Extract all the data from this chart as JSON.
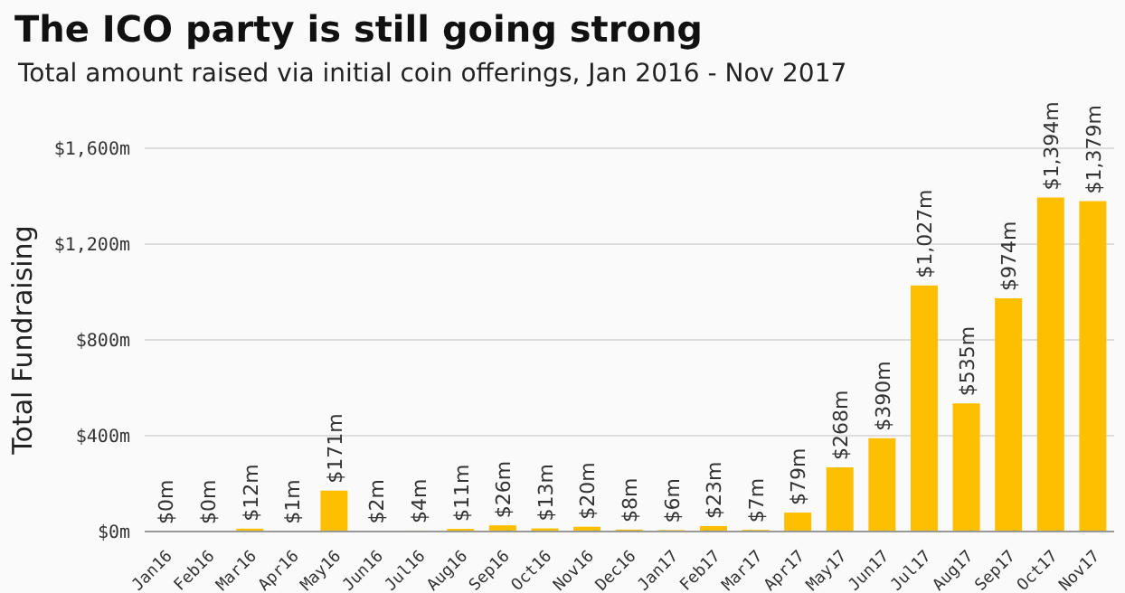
{
  "chart_data": {
    "type": "bar",
    "title": "The ICO party is still going strong",
    "subtitle": "Total amount raised via initial coin offerings, Jan 2016 - Nov 2017",
    "ylabel": "Total Fundraising",
    "categories": [
      "Jan16",
      "Feb16",
      "Mar16",
      "Apr16",
      "May16",
      "Jun16",
      "Jul16",
      "Aug16",
      "Sep16",
      "Oct16",
      "Nov16",
      "Dec16",
      "Jan17",
      "Feb17",
      "Mar17",
      "Apr17",
      "May17",
      "Jun17",
      "Jul17",
      "Aug17",
      "Sep17",
      "Oct17",
      "Nov17"
    ],
    "values": [
      0,
      0,
      12,
      1,
      171,
      2,
      4,
      11,
      26,
      13,
      20,
      8,
      6,
      23,
      7,
      79,
      268,
      390,
      1027,
      535,
      974,
      1394,
      1379
    ],
    "value_labels": [
      "$0m",
      "$0m",
      "$12m",
      "$1m",
      "$171m",
      "$2m",
      "$4m",
      "$11m",
      "$26m",
      "$13m",
      "$20m",
      "$8m",
      "$6m",
      "$23m",
      "$7m",
      "$79m",
      "$268m",
      "$390m",
      "$1,027m",
      "$535m",
      "$974m",
      "$1,394m",
      "$1,379m"
    ],
    "color": "#fdbf00",
    "ylim": [
      0,
      1600
    ],
    "yticks": [
      {
        "value": 0,
        "label": "$0m"
      },
      {
        "value": 400,
        "label": "$400m"
      },
      {
        "value": 800,
        "label": "$800m"
      },
      {
        "value": 1200,
        "label": "$1,200m"
      },
      {
        "value": 1600,
        "label": "$1,600m"
      }
    ],
    "grid": "y"
  }
}
